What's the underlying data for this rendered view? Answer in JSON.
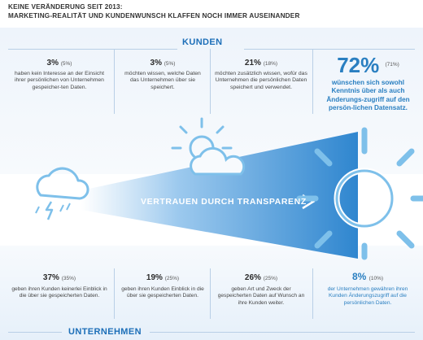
{
  "header": {
    "line1": "KEINE VERÄNDERUNG SEIT 2013:",
    "line2": "MARKETING-REALITÄT UND KUNDENWUNSCH KLAFFEN NOCH IMMER AUSEINANDER"
  },
  "kunden": {
    "title": "KUNDEN",
    "stats": [
      {
        "value": "3%",
        "prev": "(5%)",
        "text": "haben kein Interesse an der Einsicht ihrer persönlichen von Unternehmen gespeicher-ten Daten."
      },
      {
        "value": "3%",
        "prev": "(5%)",
        "text": "möchten wissen, welche Daten das Unternehmen über sie speichert."
      },
      {
        "value": "21%",
        "prev": "(18%)",
        "text": "möchten zusätzlich wissen, wofür das Unternehmen die persönlichen Daten speichert und verwendet."
      }
    ],
    "highlight": {
      "value": "72%",
      "prev": "(71%)",
      "text": "wünschen sich sowohl Kenntnis über als auch Änderungs-zugriff auf den persön-lichen Datensatz."
    }
  },
  "beam": {
    "label": "VERTRAUEN DURCH TRANSPARENZ"
  },
  "unternehmen": {
    "title": "UNTERNEHMEN",
    "stats": [
      {
        "value": "37%",
        "prev": "(35%)",
        "text": "geben ihren Kunden keinerlei Einblick in die über sie gespeicherten Daten."
      },
      {
        "value": "19%",
        "prev": "(25%)",
        "text": "geben ihren Kunden Einblick in die über sie gespeicherten Daten."
      },
      {
        "value": "26%",
        "prev": "(25%)",
        "text": "geben Art und Zweck der gespeicherten Daten auf Wunsch an ihre Kunden weiter."
      },
      {
        "value": "8%",
        "prev": "(10%)",
        "text": "der Unternehmen gewähren ihren Kunden Änderungszugriff auf die persönlichen Daten."
      }
    ]
  },
  "colors": {
    "accent": "#2a7fc1",
    "icon_blue": "#7ec0ea",
    "beam": "#4a9ad8"
  },
  "icons": [
    "storm-cloud-icon",
    "sun-cloud-icon",
    "sun-icon",
    "arrow-icon"
  ]
}
